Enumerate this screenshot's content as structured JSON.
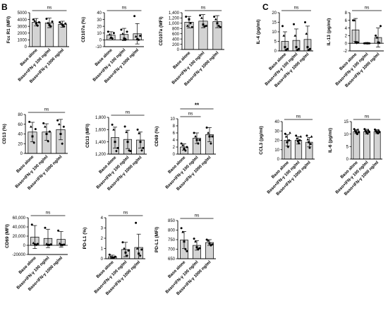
{
  "panel_labels": [
    "B",
    "C"
  ],
  "groups": [
    "Baso alone",
    "Baso+IFN-γ 100 ng/ml",
    "Baso+IFN-γ 1000 ng/ml"
  ],
  "colors": {
    "bar": "#d3d3d3",
    "stroke": "#000000"
  },
  "chart_data": [
    {
      "type": "bar",
      "id": "fceri",
      "panel": "B",
      "ylabel": "Fcε R1 (MFI)",
      "ylim": [
        0,
        5000
      ],
      "yticks": [
        "0",
        "1000",
        "2000",
        "3000",
        "4000",
        "5000"
      ],
      "ytick_values": [
        0,
        1000,
        2000,
        3000,
        4000,
        5000
      ],
      "categories": [
        "Baso alone",
        "Baso+IFN-γ 100 ng/ml",
        "Baso+IFN-γ 1000 ng/ml"
      ],
      "values": [
        3600,
        3500,
        3300
      ],
      "errors": [
        550,
        700,
        450
      ],
      "points": [
        [
          4000,
          3800,
          3400,
          3100,
          3600
        ],
        [
          4100,
          3500,
          3200,
          3000,
          3700
        ],
        [
          3600,
          3400,
          3200,
          3000,
          3400
        ]
      ],
      "sig": [
        {
          "from": 0,
          "to": 2,
          "label": "ns"
        }
      ]
    },
    {
      "type": "bar",
      "id": "cd107a_pct",
      "panel": "B",
      "ylabel": "CD107a (%)",
      "ylim": [
        -10,
        40
      ],
      "yticks": [
        "-10",
        "0",
        "10",
        "20",
        "30",
        "40"
      ],
      "ytick_values": [
        -10,
        0,
        10,
        20,
        30,
        40
      ],
      "categories": [
        "Baso alone",
        "Baso+IFN-γ 100 ng/ml",
        "Baso+IFN-γ 1000 ng/ml"
      ],
      "values": [
        7,
        8,
        9
      ],
      "errors": [
        5,
        9,
        15
      ],
      "points": [
        [
          12,
          8,
          3,
          2,
          10
        ],
        [
          15,
          9,
          2,
          1,
          12
        ],
        [
          35,
          5,
          1,
          0,
          6
        ]
      ],
      "sig": [
        {
          "from": 0,
          "to": 2,
          "label": "ns"
        }
      ]
    },
    {
      "type": "bar",
      "id": "cd107a_mfi",
      "panel": "B",
      "ylabel": "CD107a (MFI)",
      "ylim": [
        0,
        1400
      ],
      "yticks": [
        "0",
        "200",
        "400",
        "600",
        "800",
        "1,000",
        "1,200",
        "1,400"
      ],
      "ytick_values": [
        0,
        200,
        400,
        600,
        800,
        1000,
        1200,
        1400
      ],
      "categories": [
        "Baso alone",
        "Baso+IFN-γ 100 ng/ml",
        "Baso+IFN-γ 1000 ng/ml"
      ],
      "values": [
        1040,
        1080,
        1060
      ],
      "errors": [
        220,
        250,
        230
      ],
      "points": [
        [
          1250,
          900,
          1150,
          1000,
          850
        ],
        [
          1300,
          1200,
          950,
          880,
          900
        ],
        [
          1250,
          1150,
          1000,
          900,
          850
        ]
      ],
      "sig": [
        {
          "from": 0,
          "to": 2,
          "label": "ns"
        }
      ]
    },
    {
      "type": "bar",
      "id": "cd13_pct",
      "panel": "B",
      "ylabel": "CD13 (%)",
      "ylim": [
        0,
        80
      ],
      "yticks": [
        "0",
        "20",
        "40",
        "60",
        "80"
      ],
      "ytick_values": [
        0,
        20,
        40,
        60,
        80
      ],
      "categories": [
        "Baso alone",
        "Baso+IFN-γ 100 ng/ml",
        "Baso+IFN-γ 1000 ng/ml"
      ],
      "values": [
        44,
        44,
        49
      ],
      "errors": [
        20,
        17,
        21
      ],
      "points": [
        [
          65,
          55,
          35,
          22,
          50
        ],
        [
          62,
          55,
          40,
          25,
          45
        ],
        [
          68,
          60,
          40,
          20,
          55
        ]
      ],
      "sig": [
        {
          "from": 0,
          "to": 2,
          "label": "ns"
        }
      ]
    },
    {
      "type": "bar",
      "id": "cd13_mfi",
      "panel": "B",
      "ylabel": "CD13 (MFI)",
      "ylim": [
        1200,
        1800
      ],
      "yticks": [
        "1,200",
        "1,400",
        "1,600",
        "1,800"
      ],
      "ytick_values": [
        1200,
        1400,
        1600,
        1800
      ],
      "categories": [
        "Baso alone",
        "Baso+IFN-γ 100 ng/ml",
        "Baso+IFN-γ 1000 ng/ml"
      ],
      "values": [
        1470,
        1440,
        1430
      ],
      "errors": [
        170,
        150,
        130
      ],
      "points": [
        [
          1680,
          1600,
          1400,
          1250,
          1300
        ],
        [
          1650,
          1560,
          1400,
          1260,
          1250
        ],
        [
          1600,
          1540,
          1400,
          1260,
          1300
        ]
      ],
      "sig": [
        {
          "from": 0,
          "to": 2,
          "label": "ns"
        }
      ]
    },
    {
      "type": "bar",
      "id": "cd69_pct",
      "panel": "B",
      "ylabel": "CD69 (%)",
      "ylim": [
        0,
        10
      ],
      "yticks": [
        "0",
        "2",
        "4",
        "6",
        "8",
        "10"
      ],
      "ytick_values": [
        0,
        2,
        4,
        6,
        8,
        10
      ],
      "categories": [
        "Baso alone",
        "Baso+IFN-γ 100 ng/ml",
        "Baso+IFN-γ 1000 ng/ml"
      ],
      "values": [
        2,
        4.5,
        5.5
      ],
      "errors": [
        0.9,
        1.5,
        2
      ],
      "points": [
        [
          3,
          2.5,
          1.5,
          1,
          2
        ],
        [
          6,
          5,
          4,
          3,
          4
        ],
        [
          7.5,
          6,
          5,
          3,
          5
        ]
      ],
      "sig": [
        {
          "from": 0,
          "to": 1,
          "label": "ns",
          "level": 0
        },
        {
          "from": 0,
          "to": 2,
          "label": "**",
          "level": 1
        }
      ]
    },
    {
      "type": "bar",
      "id": "cd69_mfi",
      "panel": "B",
      "ylabel": "CD69 (MFI)",
      "ylim": [
        -20000,
        60000
      ],
      "yticks": [
        "-20000",
        "0",
        "20,000",
        "40,000",
        "60,000"
      ],
      "ytick_values": [
        -20000,
        0,
        20000,
        40000,
        60000
      ],
      "categories": [
        "Baso alone",
        "Baso+IFN-γ 100 ng/ml",
        "Baso+IFN-γ 1000 ng/ml"
      ],
      "values": [
        18000,
        15000,
        13000
      ],
      "errors": [
        25000,
        20000,
        17000
      ],
      "points": [
        [
          45000,
          5000,
          2000,
          1000,
          3000
        ],
        [
          38000,
          3000,
          1000,
          500,
          2000
        ],
        [
          32000,
          4000,
          1000,
          500,
          1500
        ]
      ],
      "sig": [
        {
          "from": 0,
          "to": 2,
          "label": "ns"
        }
      ]
    },
    {
      "type": "bar",
      "id": "pdl1_pct",
      "panel": "B",
      "ylabel": "PD-L1 (%)",
      "ylim": [
        0,
        4
      ],
      "yticks": [
        "0",
        "1",
        "2",
        "3",
        "4"
      ],
      "ytick_values": [
        0,
        1,
        2,
        3,
        4
      ],
      "categories": [
        "Baso alone",
        "Baso+IFN-γ 100 ng/ml",
        "Baso+IFN-γ 1000 ng/ml"
      ],
      "values": [
        0.2,
        0.9,
        1.1
      ],
      "errors": [
        0.15,
        0.7,
        1.3
      ],
      "points": [
        [
          0.4,
          0.2,
          0.1,
          0.1,
          0.2
        ],
        [
          1.6,
          1.0,
          0.6,
          0.3,
          0.8
        ],
        [
          3.5,
          1.0,
          0.5,
          0.3,
          0.9
        ]
      ],
      "sig": [
        {
          "from": 0,
          "to": 2,
          "label": "ns"
        }
      ]
    },
    {
      "type": "bar",
      "id": "pdl1_mfi",
      "panel": "B",
      "ylabel": "PD-L1 (MFI)",
      "ylim": [
        650,
        850
      ],
      "yticks": [
        "650",
        "700",
        "750",
        "800",
        "850"
      ],
      "ytick_values": [
        650,
        700,
        750,
        800,
        850
      ],
      "categories": [
        "Baso alone",
        "Baso+IFN-γ 100 ng/ml",
        "Baso+IFN-γ 1000 ng/ml"
      ],
      "values": [
        748,
        720,
        735
      ],
      "errors": [
        45,
        25,
        15
      ],
      "points": [
        [
          810,
          790,
          740,
          700,
          690
        ],
        [
          755,
          740,
          710,
          700,
          705
        ],
        [
          750,
          745,
          730,
          720,
          725
        ]
      ],
      "sig": [
        {
          "from": 0,
          "to": 2,
          "label": "ns"
        }
      ]
    },
    {
      "type": "bar",
      "id": "il4",
      "panel": "C",
      "ylabel": "IL-4 (pg/ml)",
      "ylim": [
        0,
        20
      ],
      "yticks": [
        "0",
        "5",
        "10",
        "15",
        "20"
      ],
      "ytick_values": [
        0,
        5,
        10,
        15,
        20
      ],
      "categories": [
        "Baso alone",
        "Baso+IFN-γ 100 ng/ml",
        "Baso+IFN-γ 1000 ng/ml"
      ],
      "values": [
        5,
        5.5,
        6
      ],
      "errors": [
        5,
        6,
        7
      ],
      "points": [
        [
          13,
          8,
          2,
          0.5,
          1
        ],
        [
          14,
          8,
          2,
          0.5,
          1
        ],
        [
          15,
          9,
          2,
          0.5,
          1
        ]
      ],
      "sig": [
        {
          "from": 0,
          "to": 2,
          "label": "ns"
        }
      ]
    },
    {
      "type": "bar",
      "id": "il13",
      "panel": "C",
      "ylabel": "IL-13 (pg/ml)",
      "ylim": [
        -2,
        8
      ],
      "yticks": [
        "-2",
        "0",
        "2",
        "4",
        "6",
        "8"
      ],
      "ytick_values": [
        -2,
        0,
        2,
        4,
        6,
        8
      ],
      "categories": [
        "Baso alone",
        "Baso+IFN-γ 100 ng/ml",
        "Baso+IFN-γ 1000 ng/ml"
      ],
      "values": [
        3.5,
        0,
        1.5
      ],
      "errors": [
        3,
        0.1,
        2.5
      ],
      "points": [
        [
          6,
          6,
          0.2,
          0.1,
          0.2
        ],
        [
          0,
          0,
          0,
          0,
          0
        ],
        [
          2,
          1.5,
          0.2,
          0.1,
          4.5
        ]
      ],
      "sig": [
        {
          "from": 0,
          "to": 2,
          "label": "ns"
        }
      ]
    },
    {
      "type": "bar",
      "id": "ccl3",
      "panel": "C",
      "ylabel": "CCL3 (pg/ml)",
      "ylim": [
        0,
        40
      ],
      "yticks": [
        "0",
        "10",
        "20",
        "30",
        "40"
      ],
      "ytick_values": [
        0,
        10,
        20,
        30,
        40
      ],
      "categories": [
        "Baso alone",
        "Baso+IFN-γ 100 ng/ml",
        "Baso+IFN-γ 1000 ng/ml"
      ],
      "values": [
        20,
        20,
        18
      ],
      "errors": [
        6,
        4,
        5
      ],
      "points": [
        [
          27,
          24,
          18,
          13,
          20,
          28
        ],
        [
          25,
          22,
          19,
          17,
          20,
          24
        ],
        [
          25,
          21,
          18,
          12,
          16,
          24
        ]
      ],
      "sig": [
        {
          "from": 0,
          "to": 2,
          "label": "ns"
        }
      ]
    },
    {
      "type": "bar",
      "id": "il6",
      "panel": "C",
      "ylabel": "IL-6 (pg/ml)",
      "ylim": [
        0,
        15
      ],
      "yticks": [
        "0",
        "5",
        "10",
        "15"
      ],
      "ytick_values": [
        0,
        5,
        10,
        15
      ],
      "categories": [
        "Baso alone",
        "Baso+IFN-γ 100 ng/ml",
        "Baso+IFN-γ 1000 ng/ml"
      ],
      "values": [
        11,
        11,
        11
      ],
      "errors": [
        0.8,
        0.9,
        0.8
      ],
      "points": [
        [
          12,
          11.5,
          11,
          10.5,
          10,
          11.8,
          10.8
        ],
        [
          12,
          11.5,
          11,
          10.5,
          10.2,
          11.6,
          10.9
        ],
        [
          11.8,
          11.4,
          11,
          10.6,
          10.3,
          11.5,
          10.8
        ]
      ],
      "sig": [
        {
          "from": 0,
          "to": 2,
          "label": "ns"
        }
      ]
    }
  ]
}
